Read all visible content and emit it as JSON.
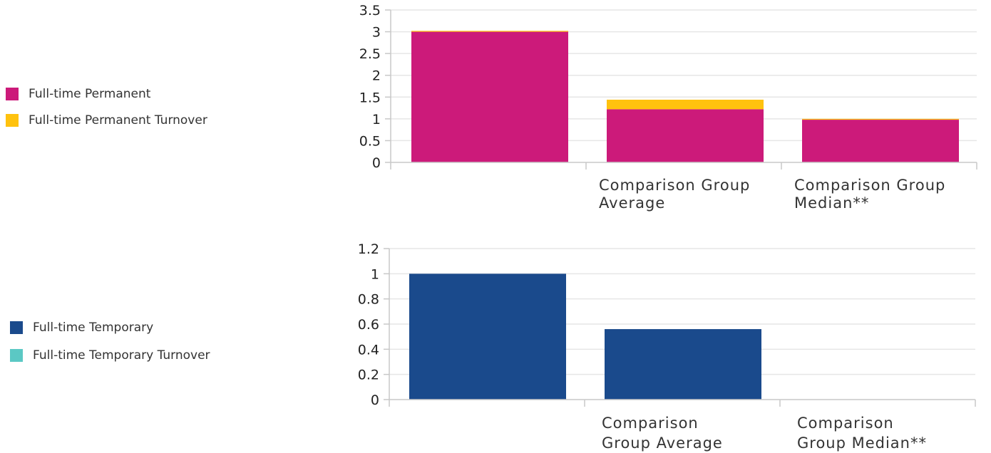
{
  "chart_data": [
    {
      "type": "bar",
      "stacked": true,
      "categories": [
        "",
        "Comparison Group Average",
        "Comparison Group Median**"
      ],
      "category_label_lines": [
        [],
        [
          "Comparison Group",
          "Average"
        ],
        [
          "Comparison Group",
          "Median**"
        ]
      ],
      "series": [
        {
          "name": "Full-time Permanent",
          "color": "#cc1a7a",
          "values": [
            3.0,
            1.22,
            0.98
          ]
        },
        {
          "name": "Full-time Permanent Turnover",
          "color": "#ffc20e",
          "values": [
            0.02,
            0.22,
            0.02
          ]
        }
      ],
      "y_ticks": [
        "0",
        "0.5",
        "1",
        "1.5",
        "2",
        "2.5",
        "3",
        "3.5"
      ],
      "ylim": [
        0,
        3.5
      ],
      "grid": true,
      "legend_position": "left"
    },
    {
      "type": "bar",
      "stacked": true,
      "categories": [
        "",
        "Comparison Group Average",
        "Comparison Group Median**"
      ],
      "category_label_lines": [
        [],
        [
          "Comparison",
          "Group Average"
        ],
        [
          "Comparison",
          "Group Median**"
        ]
      ],
      "series": [
        {
          "name": "Full-time Temporary",
          "color": "#1a4a8c",
          "values": [
            1.0,
            0.56,
            0
          ]
        },
        {
          "name": "Full-time Temporary Turnover",
          "color": "#5bc8c4",
          "values": [
            0,
            0,
            0
          ]
        }
      ],
      "y_ticks": [
        "0",
        "0.2",
        "0.4",
        "0.6",
        "0.8",
        "1",
        "1.2"
      ],
      "ylim": [
        0,
        1.2
      ],
      "grid": true,
      "legend_position": "left"
    }
  ]
}
